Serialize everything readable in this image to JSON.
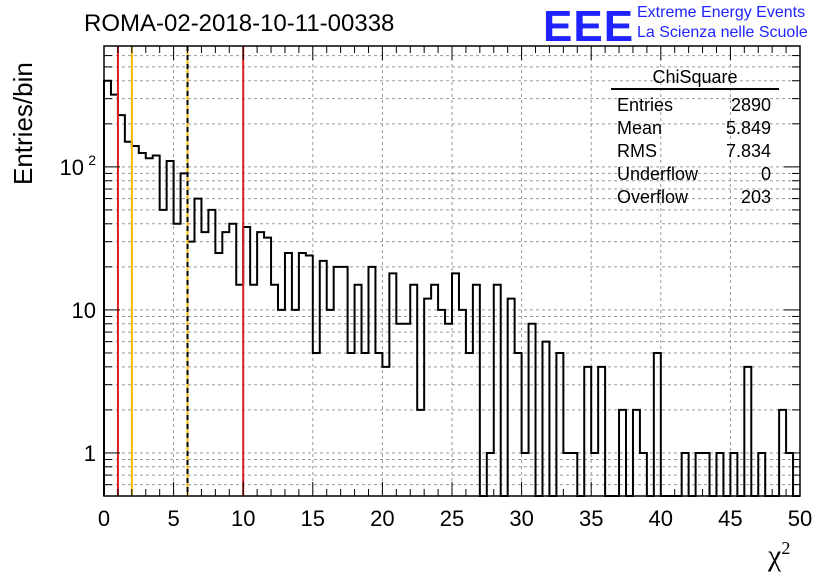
{
  "header": {
    "title": "ROMA-02-2018-10-11-00338",
    "logo_text": "EEE",
    "logo_line1": "Extreme Energy Events",
    "logo_line2": "La Scienza nelle Scuole"
  },
  "stats_box": {
    "name": "ChiSquare",
    "rows": [
      {
        "label": "Entries",
        "value": "2890"
      },
      {
        "label": "Mean",
        "value": "5.849"
      },
      {
        "label": "RMS",
        "value": "7.834"
      },
      {
        "label": "Underflow",
        "value": "0"
      },
      {
        "label": "Overflow",
        "value": "203"
      }
    ]
  },
  "chart_data": {
    "type": "histogram",
    "xlabel": "χ",
    "xlabel_sup": "2",
    "ylabel": "Entries/bin",
    "xlim": [
      0,
      50
    ],
    "ylim": [
      0.5,
      700
    ],
    "yscale": "log",
    "grid": true,
    "bin_width": 0.5,
    "x_ticks": [
      0,
      5,
      10,
      15,
      20,
      25,
      30,
      35,
      40,
      45,
      50
    ],
    "y_ticks": [
      {
        "value": 1,
        "label": "1"
      },
      {
        "value": 10,
        "label": "10"
      },
      {
        "value": 100,
        "label": "10",
        "sup": "2"
      }
    ],
    "values": [
      400,
      320,
      230,
      150,
      140,
      125,
      115,
      120,
      50,
      110,
      40,
      90,
      30,
      60,
      35,
      50,
      25,
      35,
      40,
      15,
      38,
      15,
      35,
      32,
      15,
      10,
      25,
      10,
      25,
      24,
      5,
      22,
      10,
      20,
      20,
      5,
      15,
      5,
      20,
      5,
      4,
      18,
      8,
      8,
      15,
      2,
      12,
      15,
      10,
      8,
      18,
      10,
      5,
      15,
      0,
      1,
      15,
      0,
      12,
      5,
      1,
      8,
      0,
      6,
      0,
      5,
      1,
      1,
      0,
      4,
      1,
      4,
      0,
      0,
      2,
      0,
      2,
      1,
      0,
      5,
      0,
      0,
      0,
      1,
      0,
      1,
      1,
      0,
      1,
      0,
      1,
      0,
      4,
      0,
      1,
      0,
      0,
      2,
      1,
      0,
      0,
      0,
      0,
      0,
      0,
      0,
      0,
      0,
      0,
      0,
      0,
      0,
      0,
      0,
      0,
      0,
      0,
      0,
      0,
      0
    ],
    "vertical_lines": [
      {
        "x": 1,
        "color": "#e0191f",
        "style": "solid"
      },
      {
        "x": 2,
        "color": "#f2b600",
        "style": "solid"
      },
      {
        "x": 6,
        "color": "#f2b600",
        "style": "solid"
      },
      {
        "x": 6,
        "color": "#000000",
        "style": "dashed"
      },
      {
        "x": 10,
        "color": "#e0191f",
        "style": "solid"
      }
    ]
  }
}
